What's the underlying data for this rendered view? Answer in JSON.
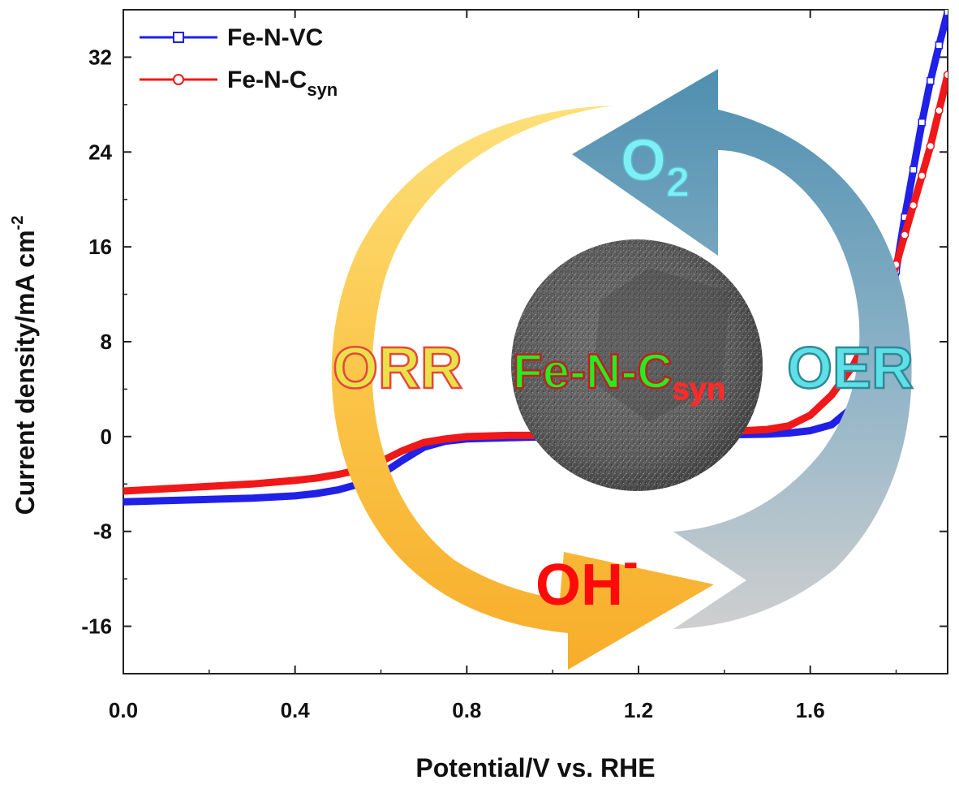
{
  "chart_data": {
    "type": "line",
    "xlabel": "Potential/V vs. RHE",
    "ylabel": "Current density/mA cm",
    "ylabel_sup": "-2",
    "xlim": [
      0.0,
      1.92
    ],
    "ylim": [
      -20,
      36
    ],
    "xticks": [
      0.0,
      0.4,
      0.8,
      1.2,
      1.6
    ],
    "xtick_labels": [
      "0.0",
      "0.4",
      "0.8",
      "1.2",
      "1.6"
    ],
    "yticks": [
      -16,
      -8,
      0,
      8,
      16,
      24,
      32
    ],
    "ytick_labels": [
      "-16",
      "-8",
      "0",
      "8",
      "16",
      "24",
      "32"
    ],
    "legend_position": "top-left",
    "series": [
      {
        "name": "Fe-N-VC",
        "color": "#2020e8",
        "marker": "square",
        "x": [
          0.0,
          0.1,
          0.2,
          0.3,
          0.4,
          0.45,
          0.5,
          0.55,
          0.6,
          0.65,
          0.7,
          0.75,
          0.8,
          0.9,
          1.0,
          1.1,
          1.2,
          1.3,
          1.4,
          1.5,
          1.55,
          1.6,
          1.65,
          1.7,
          1.75,
          1.78,
          1.8,
          1.82,
          1.84,
          1.86,
          1.88,
          1.9,
          1.92
        ],
        "y": [
          -5.5,
          -5.4,
          -5.3,
          -5.2,
          -5.0,
          -4.8,
          -4.5,
          -4.0,
          -3.2,
          -2.0,
          -0.9,
          -0.4,
          -0.2,
          -0.1,
          0.0,
          0.0,
          0.05,
          0.1,
          0.15,
          0.2,
          0.3,
          0.5,
          1.0,
          2.5,
          6.0,
          10.0,
          14.0,
          18.5,
          22.5,
          26.5,
          30.0,
          33.0,
          35.8
        ]
      },
      {
        "name": "Fe-N-C",
        "name_sub": "syn",
        "color": "#f01818",
        "marker": "circle",
        "x": [
          0.0,
          0.1,
          0.2,
          0.3,
          0.4,
          0.45,
          0.5,
          0.55,
          0.6,
          0.65,
          0.7,
          0.75,
          0.8,
          0.9,
          1.0,
          1.1,
          1.2,
          1.3,
          1.4,
          1.5,
          1.55,
          1.6,
          1.65,
          1.7,
          1.75,
          1.78,
          1.8,
          1.82,
          1.84,
          1.86,
          1.88,
          1.9,
          1.92
        ],
        "y": [
          -4.6,
          -4.4,
          -4.2,
          -4.0,
          -3.7,
          -3.5,
          -3.2,
          -2.8,
          -2.1,
          -1.2,
          -0.5,
          -0.2,
          0.0,
          0.1,
          0.1,
          0.15,
          0.2,
          0.3,
          0.4,
          0.6,
          0.9,
          1.8,
          3.5,
          6.0,
          9.5,
          12.0,
          14.5,
          17.0,
          19.5,
          22.0,
          24.5,
          27.5,
          30.5
        ]
      }
    ]
  },
  "overlay": {
    "orr_label": "ORR",
    "oer_label": "OER",
    "center_label": "Fe-N-C",
    "center_label_sub": "syn",
    "o2_label": "O",
    "o2_sub": "2",
    "oh_label": "OH",
    "oh_sup": "-"
  }
}
